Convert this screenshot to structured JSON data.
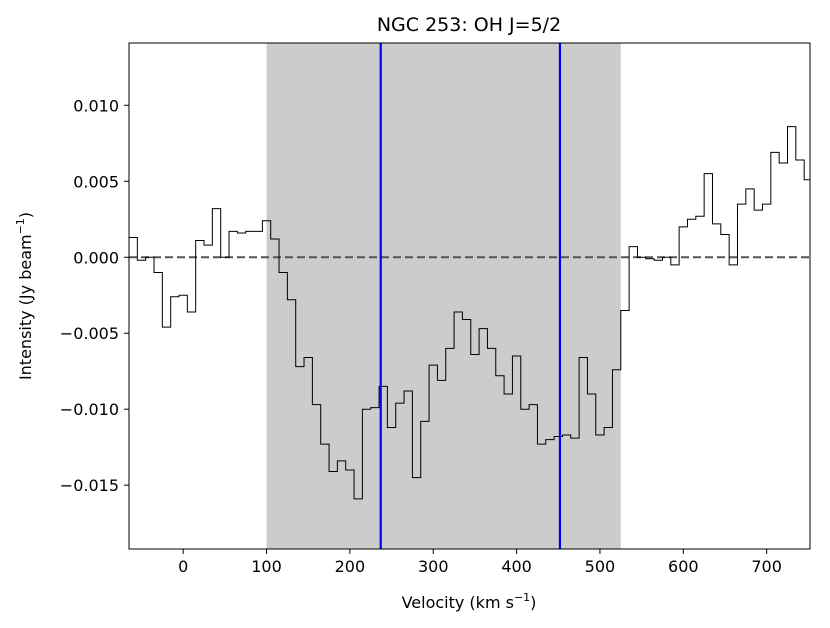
{
  "chart_data": {
    "type": "line",
    "style": "step",
    "title": "NGC 253: OH J=5/2",
    "xlabel": {
      "base": "Velocity (km s",
      "sup": "−1",
      "tail": ")"
    },
    "ylabel": {
      "base": "Intensity (Jy beam",
      "sup": "−1",
      "tail": ")"
    },
    "xlim": [
      -65,
      752
    ],
    "ylim": [
      -0.0192,
      0.0141
    ],
    "xticks": [
      0,
      100,
      200,
      300,
      400,
      500,
      600,
      700
    ],
    "xtick_labels": [
      "0",
      "100",
      "200",
      "300",
      "400",
      "500",
      "600",
      "700"
    ],
    "yticks": [
      -0.015,
      -0.01,
      -0.005,
      0.0,
      0.005,
      0.01
    ],
    "ytick_labels": [
      "−0.015",
      "−0.010",
      "−0.005",
      "0.000",
      "0.005",
      "0.010"
    ],
    "grid": false,
    "shaded_region": {
      "x0": 100,
      "x1": 525,
      "color": "#cccccc"
    },
    "vertical_lines": [
      {
        "x": 237,
        "color": "#0000ff"
      },
      {
        "x": 452,
        "color": "#0000ff"
      }
    ],
    "zero_line": {
      "y": 0,
      "color": "#555555",
      "style": "dashed"
    },
    "series": [
      {
        "color": "#000000",
        "bin_edges": [
          -65,
          -55,
          -45,
          -35,
          -25,
          -15,
          -5,
          5,
          15,
          25,
          35,
          45,
          55,
          65,
          75,
          85,
          95,
          105,
          115,
          125,
          135,
          145,
          155,
          165,
          175,
          185,
          195,
          205,
          215,
          225,
          235,
          245,
          255,
          265,
          275,
          285,
          295,
          305,
          315,
          325,
          335,
          345,
          355,
          365,
          375,
          385,
          395,
          405,
          415,
          425,
          435,
          445,
          455,
          465,
          475,
          485,
          495,
          505,
          515,
          525,
          535,
          545,
          555,
          565,
          575,
          585,
          595,
          605,
          615,
          625,
          635,
          645,
          655,
          665,
          675,
          685,
          695,
          705,
          715,
          725,
          735,
          745,
          752
        ],
        "values": [
          0.0013,
          -0.0002,
          0.0,
          -0.001,
          -0.0046,
          -0.0026,
          -0.0025,
          -0.0036,
          0.0011,
          0.0008,
          0.0032,
          0.0,
          0.0017,
          0.0016,
          0.0017,
          0.0017,
          0.0024,
          0.0012,
          -0.001,
          -0.0028,
          -0.0072,
          -0.0066,
          -0.0097,
          -0.0123,
          -0.0141,
          -0.0134,
          -0.014,
          -0.0159,
          -0.01,
          -0.0099,
          -0.0085,
          -0.0112,
          -0.0096,
          -0.0088,
          -0.0145,
          -0.0108,
          -0.0071,
          -0.0081,
          -0.006,
          -0.0036,
          -0.0041,
          -0.0064,
          -0.0047,
          -0.006,
          -0.0078,
          -0.009,
          -0.0065,
          -0.01,
          -0.0097,
          -0.0123,
          -0.012,
          -0.0118,
          -0.0117,
          -0.0119,
          -0.0066,
          -0.009,
          -0.0117,
          -0.0112,
          -0.0074,
          -0.0035,
          0.0007,
          0.0,
          -0.0001,
          -0.0002,
          0.0,
          -0.0005,
          0.002,
          0.0025,
          0.0027,
          0.0055,
          0.0022,
          0.0015,
          -0.0005,
          0.0035,
          0.0045,
          0.0031,
          0.0035,
          0.0069,
          0.0062,
          0.0086,
          0.0064,
          0.0051
        ]
      }
    ]
  }
}
